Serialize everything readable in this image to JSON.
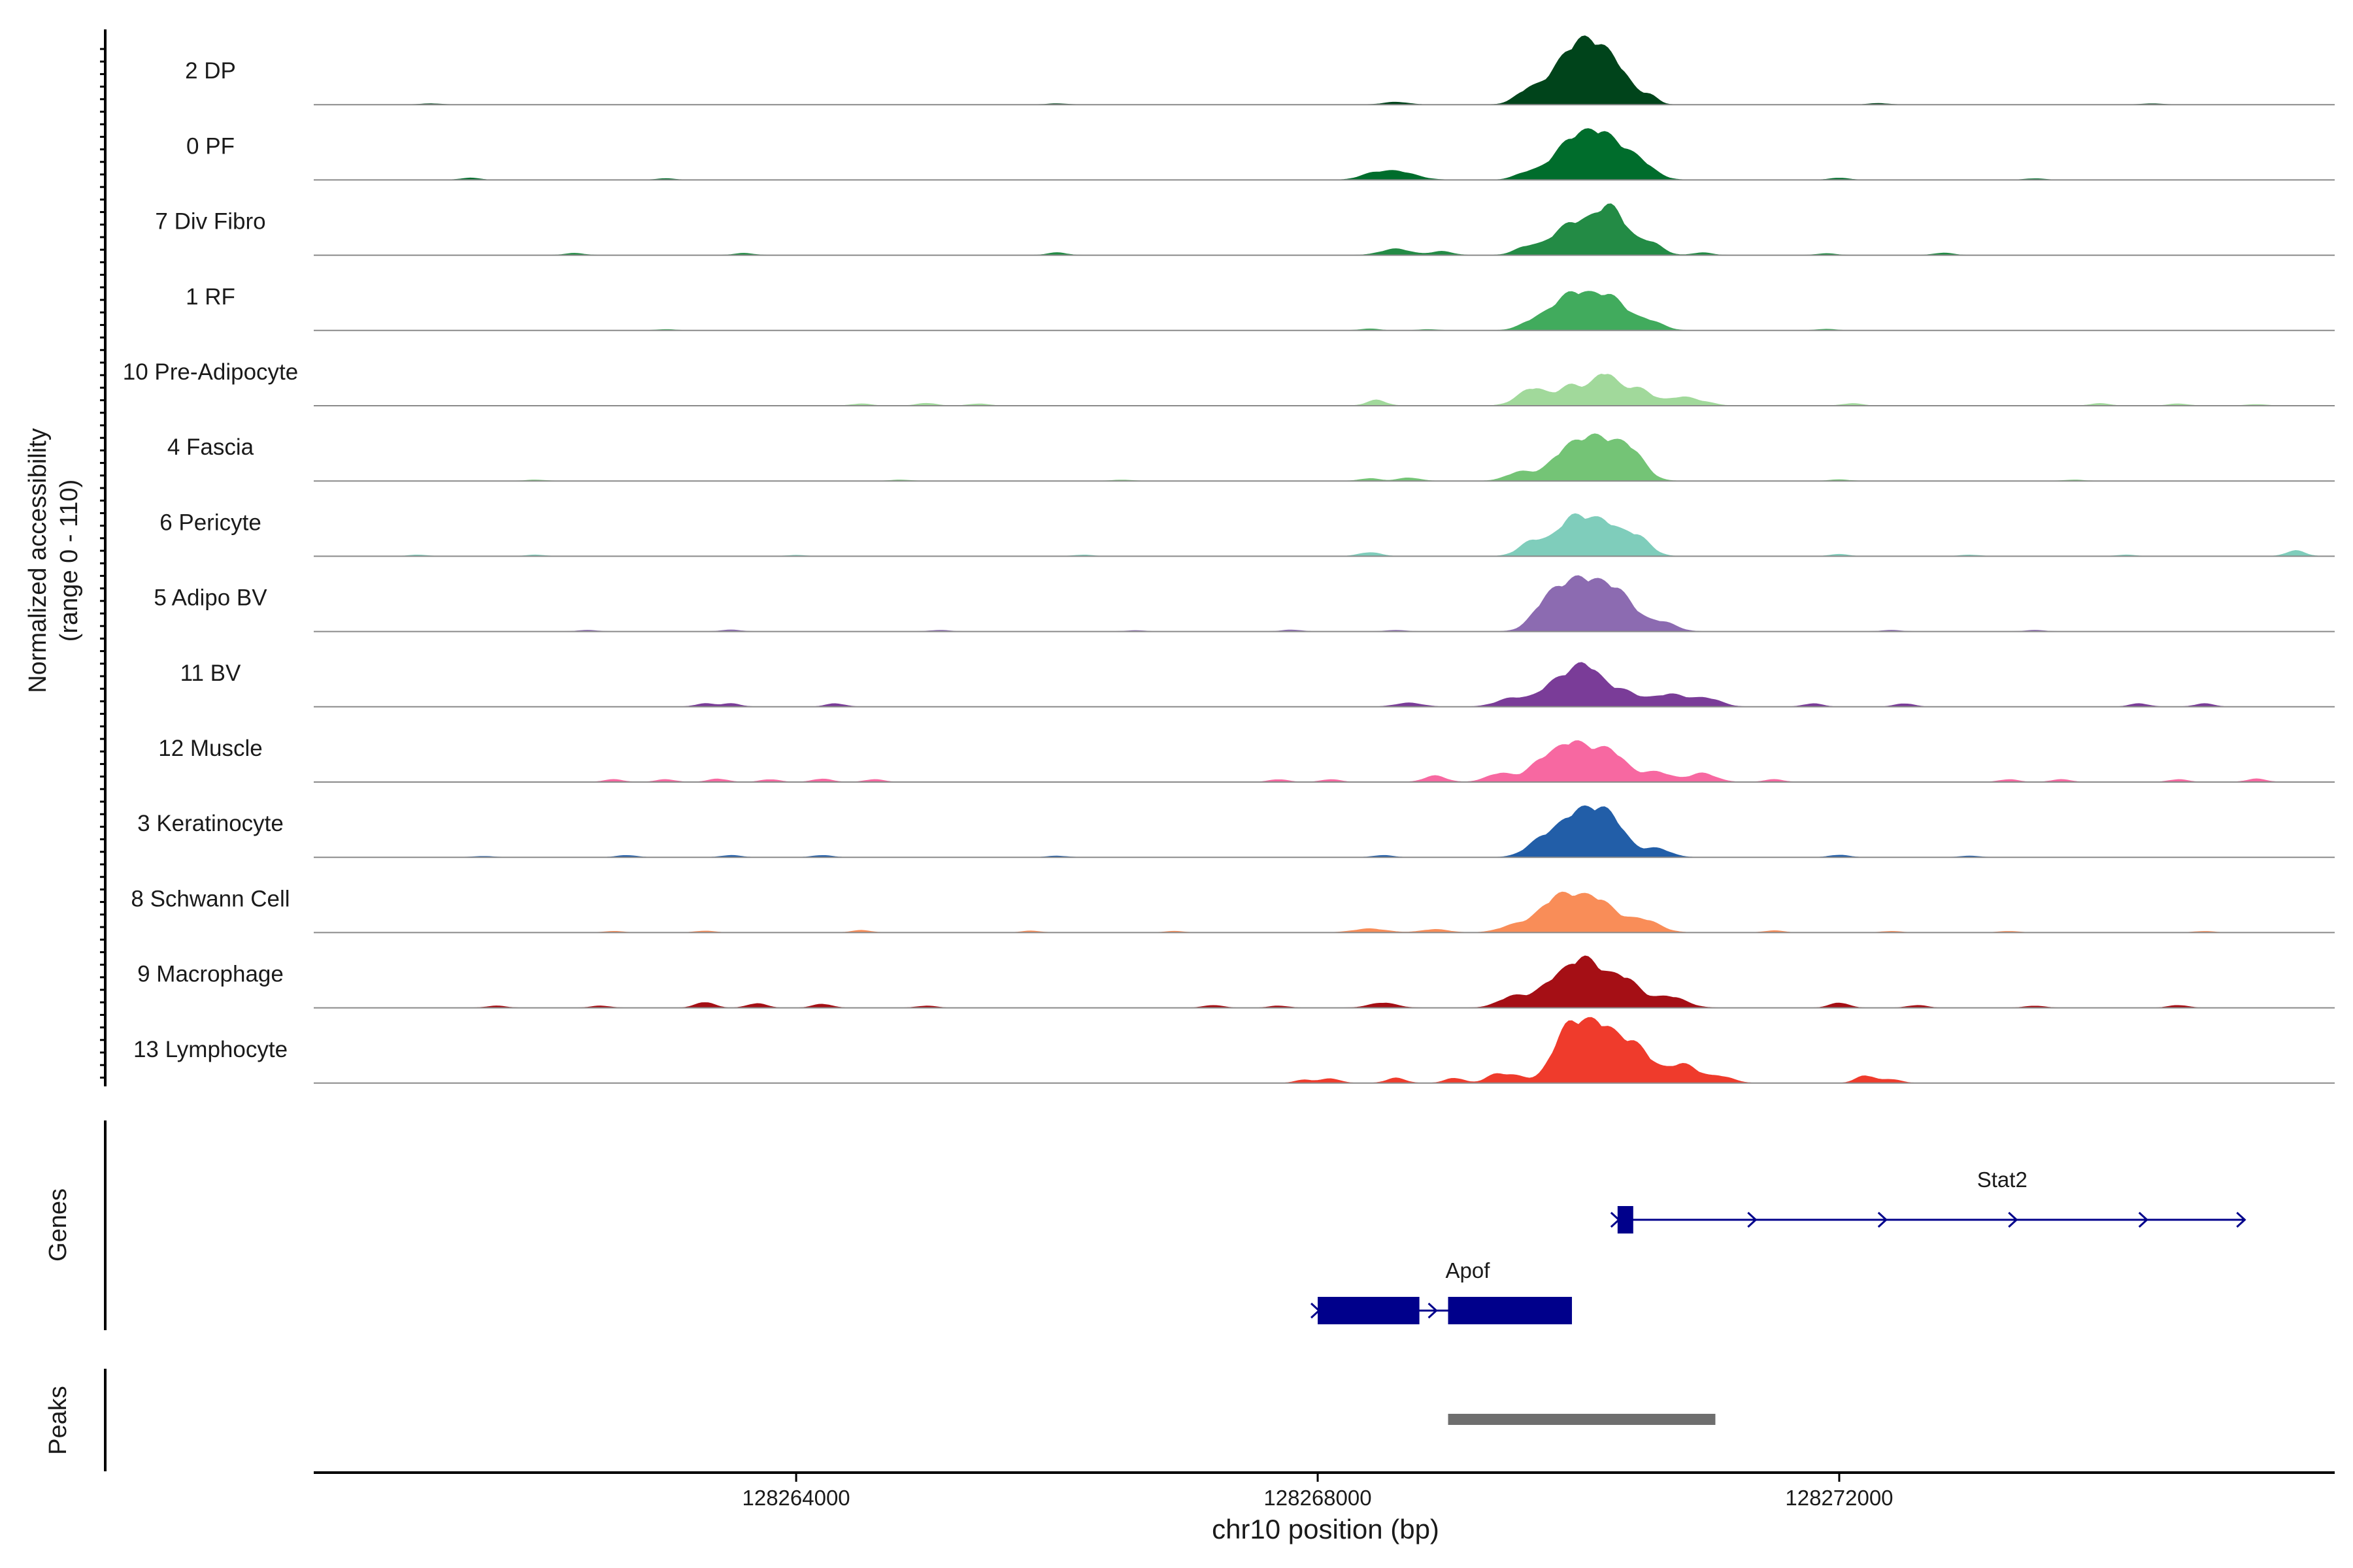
{
  "chart_data": {
    "type": "area",
    "title": "",
    "ylabel_line1": "Normalized accessibility",
    "ylabel_line2": "(range 0 - 110)",
    "ylim": [
      0,
      110
    ],
    "xlabel": "chr10 position (bp)",
    "xlim": [
      128260300,
      128275800
    ],
    "xticks": [
      128264000,
      128268000,
      128272000
    ],
    "xtick_labels": [
      "128264000",
      "128268000",
      "128272000"
    ],
    "tracks": [
      {
        "name": "2 DP",
        "color": "#00441b",
        "peaks": [
          [
            128269600,
            18,
            90
          ],
          [
            128269900,
            58,
            150
          ],
          [
            128270100,
            70,
            140
          ],
          [
            128270300,
            42,
            120
          ],
          [
            128270550,
            12,
            60
          ],
          [
            128268600,
            4,
            90
          ]
        ],
        "bumps": [
          [
            128261200,
            1.5
          ],
          [
            128266000,
            1.5
          ],
          [
            128272300,
            2
          ],
          [
            128274400,
            1.5
          ]
        ]
      },
      {
        "name": "0 PF",
        "color": "#006d2c",
        "peaks": [
          [
            128269600,
            10,
            90
          ],
          [
            128269950,
            60,
            150
          ],
          [
            128270200,
            58,
            130
          ],
          [
            128270450,
            30,
            120
          ],
          [
            128268600,
            14,
            140
          ],
          [
            128268400,
            6,
            90
          ]
        ],
        "bumps": [
          [
            128261500,
            3
          ],
          [
            128263000,
            2
          ],
          [
            128272000,
            3
          ],
          [
            128273500,
            2
          ]
        ]
      },
      {
        "name": "7 Div Fibro",
        "color": "#238b45",
        "peaks": [
          [
            128269600,
            12,
            90
          ],
          [
            128269950,
            50,
            150
          ],
          [
            128270250,
            72,
            120
          ],
          [
            128270550,
            20,
            90
          ],
          [
            128268600,
            10,
            110
          ],
          [
            128268950,
            6,
            80
          ]
        ],
        "bumps": [
          [
            128262300,
            3
          ],
          [
            128263600,
            3
          ],
          [
            128266000,
            4
          ],
          [
            128270950,
            4
          ],
          [
            128271900,
            2.5
          ],
          [
            128272800,
            3.5
          ]
        ]
      },
      {
        "name": "1 RF",
        "color": "#41ab5d",
        "peaks": [
          [
            128269650,
            12,
            100
          ],
          [
            128269950,
            58,
            150
          ],
          [
            128270250,
            48,
            130
          ],
          [
            128270550,
            14,
            100
          ]
        ],
        "bumps": [
          [
            128263000,
            1.5
          ],
          [
            128268400,
            2.5
          ],
          [
            128268850,
            1.5
          ],
          [
            128271900,
            2
          ]
        ]
      },
      {
        "name": "10 Pre-Adipocyte",
        "color": "#a1d99b",
        "peaks": [
          [
            128269650,
            28,
            110
          ],
          [
            128269950,
            32,
            100
          ],
          [
            128270200,
            50,
            90
          ],
          [
            128270450,
            28,
            110
          ],
          [
            128270800,
            14,
            110
          ],
          [
            128268450,
            9,
            70
          ]
        ],
        "bumps": [
          [
            128264500,
            3
          ],
          [
            128265000,
            4
          ],
          [
            128265400,
            3
          ],
          [
            128271000,
            3
          ],
          [
            128272100,
            3.5
          ],
          [
            128274000,
            3.5
          ],
          [
            128274600,
            3
          ],
          [
            128275200,
            2
          ]
        ]
      },
      {
        "name": "4 Fascia",
        "color": "#74c476",
        "peaks": [
          [
            128269550,
            14,
            100
          ],
          [
            128269900,
            42,
            130
          ],
          [
            128270150,
            62,
            140
          ],
          [
            128270400,
            44,
            110
          ],
          [
            128268700,
            5,
            80
          ],
          [
            128268400,
            4,
            70
          ]
        ],
        "bumps": [
          [
            128262000,
            1.5
          ],
          [
            128264800,
            1.5
          ],
          [
            128266500,
            1.5
          ],
          [
            128272000,
            2
          ],
          [
            128273800,
            1.5
          ]
        ]
      },
      {
        "name": "6 Pericyte",
        "color": "#7fcdbb",
        "peaks": [
          [
            128269650,
            24,
            100
          ],
          [
            128269950,
            58,
            120
          ],
          [
            128270200,
            50,
            120
          ],
          [
            128270450,
            30,
            100
          ],
          [
            128268400,
            6,
            80
          ]
        ],
        "bumps": [
          [
            128275500,
            9
          ],
          [
            128261100,
            2
          ],
          [
            128262000,
            2
          ],
          [
            128264000,
            1.5
          ],
          [
            128266200,
            2
          ],
          [
            128272000,
            3
          ],
          [
            128273000,
            2
          ],
          [
            128274200,
            2
          ]
        ]
      },
      {
        "name": "5 Adipo BV",
        "color": "#8c6bb1",
        "peaks": [
          [
            128269750,
            34,
            110
          ],
          [
            128270000,
            78,
            160
          ],
          [
            128270300,
            56,
            140
          ],
          [
            128270650,
            14,
            100
          ]
        ],
        "bumps": [
          [
            128262400,
            2
          ],
          [
            128263500,
            2.5
          ],
          [
            128265100,
            2
          ],
          [
            128266600,
            1.5
          ],
          [
            128267800,
            2.5
          ],
          [
            128268600,
            2
          ],
          [
            128272400,
            2
          ],
          [
            128273500,
            2
          ]
        ]
      },
      {
        "name": "11 BV",
        "color": "#7a3c98",
        "peaks": [
          [
            128269500,
            14,
            120
          ],
          [
            128269800,
            30,
            110
          ],
          [
            128270050,
            66,
            130
          ],
          [
            128270350,
            22,
            110
          ],
          [
            128270700,
            20,
            140
          ],
          [
            128271000,
            12,
            100
          ],
          [
            128268700,
            6,
            100
          ]
        ],
        "bumps": [
          [
            128263300,
            5
          ],
          [
            128263500,
            5
          ],
          [
            128264300,
            5
          ],
          [
            128271800,
            5
          ],
          [
            128272500,
            5
          ],
          [
            128274300,
            5
          ],
          [
            128274800,
            5
          ]
        ]
      },
      {
        "name": "12 Muscle",
        "color": "#f768a1",
        "peaks": [
          [
            128269400,
            14,
            100
          ],
          [
            128269700,
            24,
            100
          ],
          [
            128269950,
            62,
            140
          ],
          [
            128270250,
            46,
            120
          ],
          [
            128270600,
            16,
            110
          ],
          [
            128270950,
            14,
            100
          ],
          [
            128268900,
            10,
            80
          ]
        ],
        "bumps": [
          [
            128262600,
            4
          ],
          [
            128263000,
            4
          ],
          [
            128263400,
            5
          ],
          [
            128263800,
            4
          ],
          [
            128264200,
            5
          ],
          [
            128264600,
            4
          ],
          [
            128267700,
            4
          ],
          [
            128268100,
            4
          ],
          [
            128271500,
            4
          ],
          [
            128273300,
            4
          ],
          [
            128273700,
            4
          ],
          [
            128274600,
            4
          ],
          [
            128275200,
            5
          ]
        ]
      },
      {
        "name": "3 Keratinocyte",
        "color": "#225ea8",
        "peaks": [
          [
            128269700,
            20,
            110
          ],
          [
            128270000,
            70,
            160
          ],
          [
            128270250,
            50,
            120
          ],
          [
            128270600,
            14,
            100
          ]
        ],
        "bumps": [
          [
            128261600,
            1.5
          ],
          [
            128262700,
            3
          ],
          [
            128263500,
            3
          ],
          [
            128264200,
            3
          ],
          [
            128266000,
            2
          ],
          [
            128268500,
            3
          ],
          [
            128272000,
            3.5
          ],
          [
            128273000,
            2
          ]
        ]
      },
      {
        "name": "8 Schwann Cell",
        "color": "#f98d58",
        "peaks": [
          [
            128269500,
            10,
            110
          ],
          [
            128269850,
            56,
            150
          ],
          [
            128270150,
            48,
            140
          ],
          [
            128270500,
            20,
            120
          ],
          [
            128268400,
            6,
            120
          ],
          [
            128268900,
            5,
            100
          ]
        ],
        "bumps": [
          [
            128262600,
            2
          ],
          [
            128263300,
            2.5
          ],
          [
            128264500,
            3.5
          ],
          [
            128265800,
            2.5
          ],
          [
            128266900,
            2
          ],
          [
            128271500,
            3
          ],
          [
            128272400,
            2
          ],
          [
            128273300,
            2
          ],
          [
            128274800,
            2
          ]
        ]
      },
      {
        "name": "9 Macrophage",
        "color": "#a50f15",
        "peaks": [
          [
            128269500,
            18,
            110
          ],
          [
            128269800,
            36,
            120
          ],
          [
            128270050,
            74,
            130
          ],
          [
            128270350,
            46,
            120
          ],
          [
            128270700,
            18,
            120
          ],
          [
            128268500,
            8,
            100
          ]
        ],
        "bumps": [
          [
            128263300,
            9
          ],
          [
            128263700,
            7
          ],
          [
            128264200,
            6
          ],
          [
            128261700,
            3
          ],
          [
            128262500,
            3
          ],
          [
            128265000,
            3
          ],
          [
            128267200,
            4
          ],
          [
            128267700,
            3
          ],
          [
            128272000,
            8
          ],
          [
            128272600,
            4
          ],
          [
            128273500,
            3
          ],
          [
            128274600,
            4
          ]
        ]
      },
      {
        "name": "13 Lymphocyte",
        "color": "#ef3b2c",
        "peaks": [
          [
            128269900,
            68,
            110
          ],
          [
            128270150,
            92,
            150
          ],
          [
            128270450,
            50,
            120
          ],
          [
            128270800,
            30,
            120
          ],
          [
            128271100,
            10,
            90
          ],
          [
            128269500,
            12,
            100
          ]
        ],
        "bumps": [
          [
            128268100,
            7
          ],
          [
            128268600,
            8
          ],
          [
            128269050,
            8
          ],
          [
            128269350,
            10
          ],
          [
            128272200,
            12
          ],
          [
            128272400,
            6
          ],
          [
            128267900,
            5
          ]
        ]
      }
    ],
    "genes_label": "Genes",
    "genes": [
      {
        "name": "Stat2",
        "strand": "+",
        "start": 128270300,
        "end": 128275100,
        "exons": [
          [
            128270300,
            128270420
          ]
        ],
        "arrows": [
          128270300,
          128271350,
          128272350,
          128273350,
          128274350,
          128275100
        ]
      },
      {
        "name": "Apof",
        "strand": "+",
        "start": 128268000,
        "end": 128269950,
        "exons": [
          [
            128268000,
            128268780
          ],
          [
            128269000,
            128269950
          ]
        ],
        "arrows": [
          128268000,
          128268900
        ]
      }
    ],
    "peaks_label": "Peaks",
    "peak_regions": [
      [
        128269000,
        128271050
      ]
    ],
    "peak_color": "#6e6e6e",
    "gene_color": "#00008b"
  }
}
